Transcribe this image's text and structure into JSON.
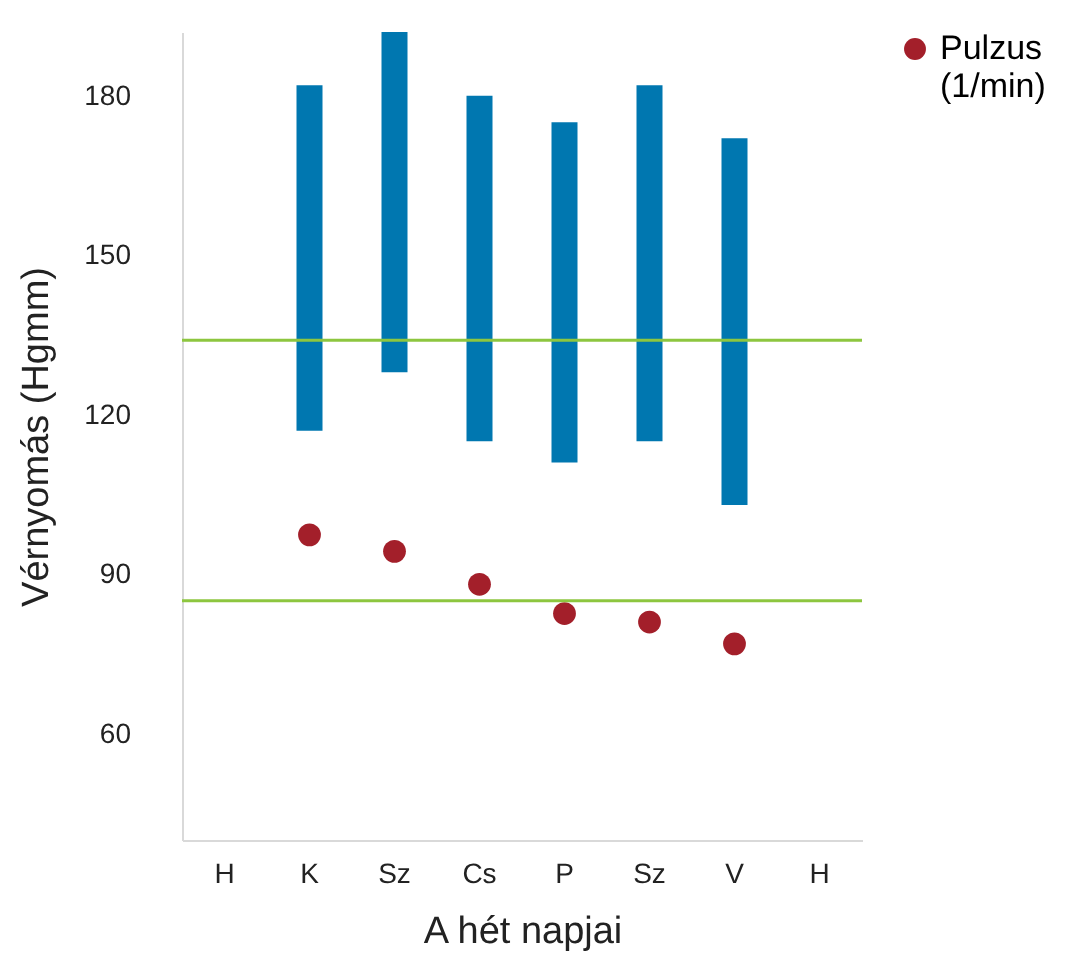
{
  "chart_data": {
    "type": "bar",
    "xlabel": "A hét napjai",
    "ylabel": "Vérnyomás (Hgmm)",
    "categories": [
      "H",
      "K",
      "Sz",
      "Cs",
      "P",
      "Sz",
      "V",
      "H"
    ],
    "ylim": [
      40,
      192
    ],
    "yticks": [
      60,
      90,
      120,
      150,
      180
    ],
    "grid": false,
    "legend": "right",
    "series": [
      {
        "color": "#0077b0",
        "base": [
          null,
          117,
          128,
          115,
          111,
          115,
          103,
          null
        ],
        "values": [
          null,
          65,
          64,
          65,
          64,
          67,
          69,
          null
        ]
      },
      {
        "type": "scatter",
        "name": "Pulzus (1/min)",
        "color": "#a31f2a",
        "marker": "circle",
        "values": [
          null,
          97.4,
          94.3,
          88.1,
          82.6,
          81,
          76.9,
          null
        ]
      }
    ],
    "ref_lines": [
      {
        "axis": "y",
        "value": 134,
        "color": "#8dc63f"
      },
      {
        "axis": "y",
        "value": 85,
        "color": "#8dc63f"
      }
    ]
  }
}
